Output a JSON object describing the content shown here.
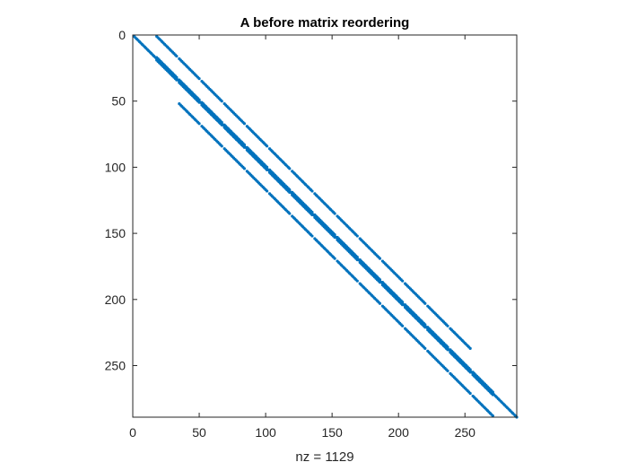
{
  "chart_data": {
    "type": "scatter",
    "title": "A before matrix reordering",
    "xlabel": "nz = 1129",
    "ylabel": "",
    "xlim": [
      0,
      289
    ],
    "ylim": [
      0,
      289
    ],
    "y_reversed": true,
    "grid": false,
    "legend": "none",
    "marker_color": "#0072BD",
    "axis_color": "#262626",
    "xticks": [
      0,
      50,
      100,
      150,
      200,
      250
    ],
    "yticks": [
      0,
      50,
      100,
      150,
      200,
      250
    ],
    "series": [
      {
        "offset": 0,
        "x_start": 1,
        "x_end": 289,
        "block": 0,
        "gap": 0
      },
      {
        "offset": 1,
        "x_start": 18,
        "x_end": 272,
        "block": 16,
        "gap": 1
      },
      {
        "offset": -1,
        "x_start": 18,
        "x_end": 272,
        "block": 16,
        "gap": 1
      },
      {
        "offset": 17,
        "x_start": 35,
        "x_end": 272,
        "block": 16,
        "gap": 1
      },
      {
        "offset": -17,
        "x_start": 18,
        "x_end": 255,
        "block": 16,
        "gap": 1
      }
    ],
    "nz": 1129
  }
}
